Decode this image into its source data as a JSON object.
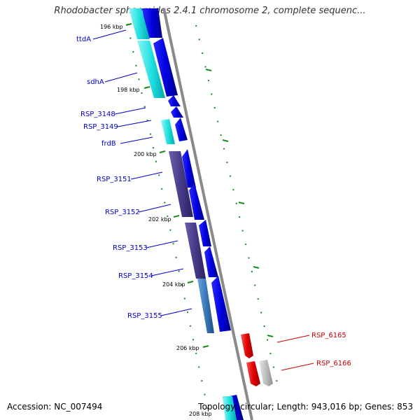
{
  "title": "Rhodobacter sphaeroides 2.4.1 chromosome 2, complete sequenc...",
  "footer": {
    "accession": "Accession: NC_007494",
    "summary": "Topology: circular; Length: 943,016 bp; Genes: 853"
  },
  "ticks": [
    "196 kbp",
    "198 kbp",
    "200 kbp",
    "202 kbp",
    "204 kbp",
    "206 kbp",
    "208 kbp"
  ],
  "genes": [
    {
      "name": "ttdA",
      "color": "#0000cc"
    },
    {
      "name": "sdhA",
      "color": "#0000cc"
    },
    {
      "name": "RSP_3148",
      "color": "#0000cc"
    },
    {
      "name": "RSP_3149",
      "color": "#0000cc"
    },
    {
      "name": "frdB",
      "color": "#0000cc"
    },
    {
      "name": "RSP_3151",
      "color": "#0000cc"
    },
    {
      "name": "RSP_3152",
      "color": "#0000cc"
    },
    {
      "name": "RSP_3153",
      "color": "#0000cc"
    },
    {
      "name": "RSP_3154",
      "color": "#0000cc"
    },
    {
      "name": "RSP_3155",
      "color": "#0000cc"
    },
    {
      "name": "RSP_6165",
      "color": "#cc0000"
    },
    {
      "name": "RSP_6166",
      "color": "#cc0000"
    }
  ],
  "colors": {
    "backbone": "#8a8a8a",
    "cds_forward": "#1a1aee",
    "tick": "#1a8a1a",
    "cog_cyan": "#33e5e5",
    "cog_purple": "#4a3f8a",
    "cog_steel": "#3a78b8",
    "cds_reverse": "#e01010",
    "other_gray": "#b5b5b5"
  }
}
